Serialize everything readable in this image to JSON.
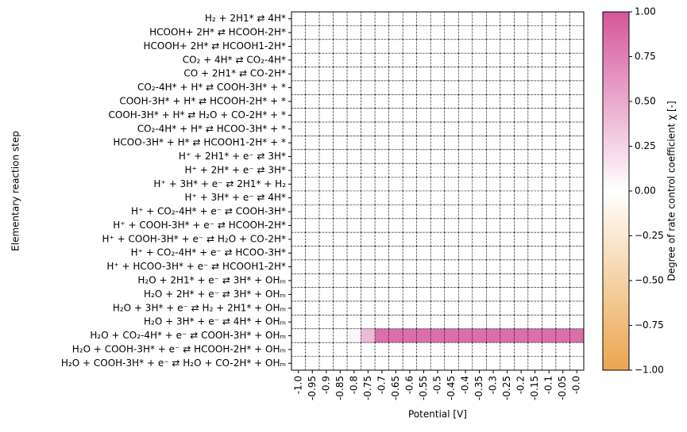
{
  "chart_data": {
    "type": "heatmap",
    "x_label": "Potential [V]",
    "y_label": "Elementary reaction step",
    "colorbar_label": "Degree of rate control coefficient χ [-]",
    "x": [
      "-1.0",
      "-0.95",
      "-0.9",
      "-0.85",
      "-0.8",
      "-0.75",
      "-0.7",
      "-0.65",
      "-0.6",
      "-0.55",
      "-0.5",
      "-0.45",
      "-0.4",
      "-0.35",
      "-0.3",
      "-0.25",
      "-0.2",
      "-0.15",
      "-0.1",
      "-0.05",
      "-0.0"
    ],
    "y": [
      "H₂ + 2H1* ⇄ 4H*",
      "HCOOH+ 2H* ⇄ HCOOH-2H*",
      "HCOOH+ 2H* ⇄ HCOOH1-2H*",
      "CO₂ + 4H* ⇄ CO₂-4H*",
      "CO + 2H1* ⇄ CO-2H*",
      "CO₂-4H* + H* ⇄ COOH-3H* + *",
      "COOH-3H* + H* ⇄ HCOOH-2H* + *",
      "COOH-3H* + H* ⇄ H₂O + CO-2H* + *",
      "CO₂-4H* + H* ⇄ HCOO-3H* + *",
      "HCOO-3H* + H* ⇄ HCOOH1-2H* + *",
      "H⁺ + 2H1* + e⁻ ⇄ 3H*",
      "H⁺ + 2H* + e⁻ ⇄ 3H*",
      "H⁺ + 3H* + e⁻ ⇄ 2H1* + H₂",
      "H⁺ + 3H* + e⁻ ⇄ 4H*",
      "H⁺ + CO₂-4H* + e⁻ ⇄ COOH-3H*",
      "H⁺ + COOH-3H* + e⁻ ⇄ HCOOH-2H*",
      "H⁺ + COOH-3H* + e⁻ ⇄ H₂O + CO-2H*",
      "H⁺ + CO₂-4H* + e⁻ ⇄ HCOO-3H*",
      "H⁺ + HCOO-3H* + e⁻ ⇄ HCOOH1-2H*",
      "H₂O + 2H1* + e⁻ ⇄ 3H* + OHₘ",
      "H₂O + 2H* + e⁻ ⇄ 3H* + OHₘ",
      "H₂O + 3H* + e⁻ ⇄ H₂ + 2H1* + OHₘ",
      "H₂O + 3H* + e⁻ ⇄ 4H* + OHₘ",
      "H₂O + CO₂-4H* + e⁻ ⇄ COOH-3H* + OHₘ",
      "H₂O + COOH-3H* + e⁻ ⇄ HCOOH-2H* + OHₘ",
      "H₂O + COOH-3H* + e⁻ ⇄ H₂O + CO-2H* + OHₘ"
    ],
    "values": [
      [
        0,
        0,
        0,
        0,
        0,
        0,
        0,
        0,
        0,
        0,
        0,
        0,
        0,
        0,
        0,
        0,
        0,
        0,
        0,
        0,
        0
      ],
      [
        0,
        0,
        0,
        0,
        0,
        0,
        0,
        0,
        0,
        0,
        0,
        0,
        0,
        0,
        0,
        0,
        0,
        0,
        0,
        0,
        0
      ],
      [
        0,
        0,
        0,
        0,
        0,
        0,
        0,
        0,
        0,
        0,
        0,
        0,
        0,
        0,
        0,
        0,
        0,
        0,
        0,
        0,
        0
      ],
      [
        0,
        0,
        0,
        0,
        0,
        0,
        0,
        0,
        0,
        0,
        0,
        0,
        0,
        0,
        0,
        0,
        0,
        0,
        0,
        0,
        0
      ],
      [
        0,
        0,
        0,
        0,
        0,
        0,
        0,
        0,
        0,
        0,
        0,
        0,
        0,
        0,
        0,
        0,
        0,
        0,
        0,
        0,
        0
      ],
      [
        0,
        0,
        0,
        0,
        0,
        0,
        0,
        0,
        0,
        0,
        0,
        0,
        0,
        0,
        0,
        0,
        0,
        0,
        0,
        0,
        0
      ],
      [
        0,
        0,
        0,
        0,
        0,
        0,
        0,
        0,
        0,
        0,
        0,
        0,
        0,
        0,
        0,
        0,
        0,
        0,
        0,
        0,
        0
      ],
      [
        0,
        0,
        0,
        0,
        0,
        0,
        0,
        0,
        0,
        0,
        0,
        0,
        0,
        0,
        0,
        0,
        0,
        0,
        0,
        0,
        0
      ],
      [
        0,
        0,
        0,
        0,
        0,
        0,
        0,
        0,
        0,
        0,
        0,
        0,
        0,
        0,
        0,
        0,
        0,
        0,
        0,
        0,
        0
      ],
      [
        0,
        0,
        0,
        0,
        0,
        0,
        0,
        0,
        0,
        0,
        0,
        0,
        0,
        0,
        0,
        0,
        0,
        0,
        0,
        0,
        0
      ],
      [
        0,
        0,
        0,
        0,
        0,
        0,
        0,
        0,
        0,
        0,
        0,
        0,
        0,
        0,
        0,
        0,
        0,
        0,
        0,
        0,
        0
      ],
      [
        0,
        0,
        0,
        0,
        0,
        0,
        0,
        0,
        0,
        0,
        0,
        0,
        0,
        0,
        0,
        0,
        0,
        0,
        0,
        0,
        0
      ],
      [
        0,
        0,
        0,
        0,
        0,
        0,
        0,
        0,
        0,
        0,
        0,
        0,
        0,
        0,
        0,
        0,
        0,
        0,
        0,
        0,
        0
      ],
      [
        0,
        0,
        0,
        0,
        0,
        0,
        0,
        0,
        0,
        0,
        0,
        0,
        0,
        0,
        0,
        0,
        0,
        0,
        0,
        0,
        0
      ],
      [
        0,
        0,
        0,
        0,
        0,
        0,
        0,
        0,
        0,
        0,
        0,
        0,
        0,
        0,
        0,
        0,
        0,
        0,
        0,
        0,
        0
      ],
      [
        0,
        0,
        0,
        0,
        0,
        0,
        0,
        0,
        0,
        0,
        0,
        0,
        0,
        0,
        0,
        0,
        0,
        0,
        0,
        0,
        0
      ],
      [
        0,
        0,
        0,
        0,
        0,
        0,
        0,
        0,
        0,
        0,
        0,
        0,
        0,
        0,
        0,
        0,
        0,
        0,
        0,
        0,
        0
      ],
      [
        0,
        0,
        0,
        0,
        0,
        0,
        0,
        0,
        0,
        0,
        0,
        0,
        0,
        0,
        0,
        0,
        0,
        0,
        0,
        0,
        0
      ],
      [
        0,
        0,
        0,
        0,
        0,
        0,
        0,
        0,
        0,
        0,
        0,
        0,
        0,
        0,
        0,
        0,
        0,
        0,
        0,
        0,
        0
      ],
      [
        0,
        0,
        0,
        0,
        0,
        0,
        0,
        0,
        0,
        0,
        0,
        0,
        0,
        0,
        0,
        0,
        0,
        0,
        0,
        0,
        0
      ],
      [
        0,
        0,
        0,
        0,
        0,
        0,
        0,
        0,
        0,
        0,
        0,
        0,
        0,
        0,
        0,
        0,
        0,
        0,
        0,
        0,
        0
      ],
      [
        0,
        0,
        0,
        0,
        0,
        0,
        0,
        0,
        0,
        0,
        0,
        0,
        0,
        0,
        0,
        0,
        0,
        0,
        0,
        0,
        0
      ],
      [
        0,
        0,
        0,
        0,
        0,
        0,
        0,
        0,
        0,
        0,
        0,
        0,
        0,
        0,
        0,
        0,
        0,
        0,
        0,
        0,
        0
      ],
      [
        0,
        0,
        0,
        0,
        0.05,
        0.4,
        0.85,
        0.85,
        0.85,
        0.85,
        0.85,
        0.85,
        0.85,
        0.85,
        0.85,
        0.85,
        0.85,
        0.85,
        0.85,
        0.85,
        0.85
      ],
      [
        0,
        0,
        0,
        0,
        0,
        0,
        0,
        0,
        0,
        0,
        0,
        0,
        0,
        0,
        0,
        0,
        0,
        0,
        0,
        0,
        0
      ],
      [
        0,
        0,
        0,
        0,
        0,
        0,
        0,
        0,
        0,
        0,
        0,
        0,
        0,
        0,
        0,
        0,
        0,
        0,
        0,
        0,
        0
      ]
    ],
    "zlim": [
      -1,
      1
    ],
    "colorscale": [
      "#eba54f",
      "#ffffff",
      "#d4569a"
    ],
    "zticks": [
      {
        "value": 1,
        "label": "1.00"
      },
      {
        "value": 0.75,
        "label": "0.75"
      },
      {
        "value": 0.5,
        "label": "0.50"
      },
      {
        "value": 0.25,
        "label": "0.25"
      },
      {
        "value": 0,
        "label": "0.00"
      },
      {
        "value": -0.25,
        "label": "−0.25"
      },
      {
        "value": -0.5,
        "label": "−0.50"
      },
      {
        "value": -0.75,
        "label": "−0.75"
      },
      {
        "value": -1,
        "label": "−1.00"
      }
    ]
  }
}
